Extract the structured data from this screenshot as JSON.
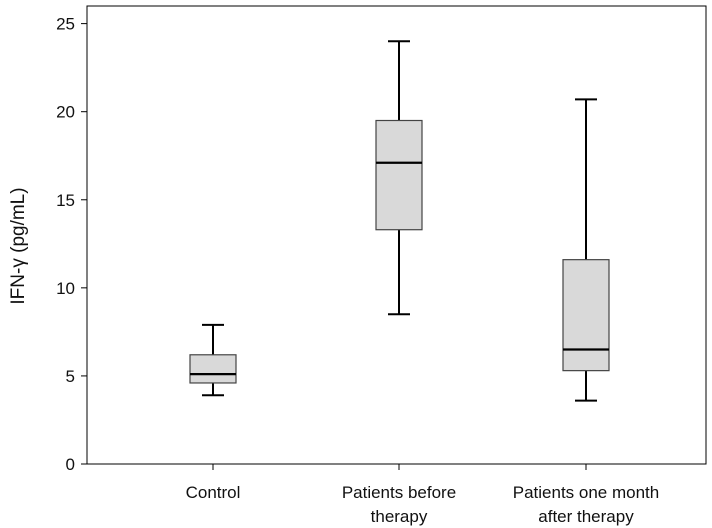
{
  "chart_data": {
    "type": "box",
    "ylabel": "IFN-γ (pg/mL)",
    "xlabel": "",
    "ylim": [
      0,
      26
    ],
    "yticks": [
      0,
      5,
      10,
      15,
      20,
      25
    ],
    "grid": false,
    "box_fill": "#d9d9d9",
    "line_color": "#000000",
    "categories": [
      [
        "Control"
      ],
      [
        "Patients before",
        "therapy"
      ],
      [
        "Patients one month",
        "after therapy"
      ]
    ],
    "boxes": [
      {
        "whisker_low": 3.9,
        "q1": 4.6,
        "median": 5.1,
        "q3": 6.2,
        "whisker_high": 7.9
      },
      {
        "whisker_low": 8.5,
        "q1": 13.3,
        "median": 17.1,
        "q3": 19.5,
        "whisker_high": 24.0
      },
      {
        "whisker_low": 3.6,
        "q1": 5.3,
        "median": 6.5,
        "q3": 11.6,
        "whisker_high": 20.7
      }
    ]
  }
}
